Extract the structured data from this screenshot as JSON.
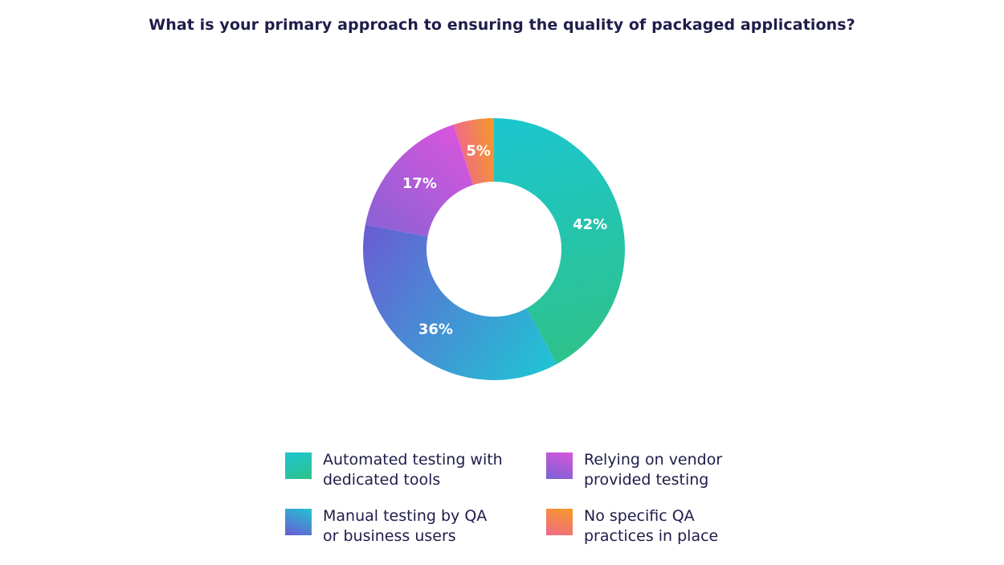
{
  "chart_data": {
    "type": "pie",
    "title": "What is your primary approach to ensuring the quality of packaged applications?",
    "series": [
      {
        "name": "Automated testing with dedicated tools",
        "value": 42,
        "label": "42%",
        "colors": [
          "#1bc6d0",
          "#2ec28a"
        ]
      },
      {
        "name": "Manual testing by QA or business users",
        "value": 36,
        "label": "36%",
        "colors": [
          "#20c4d4",
          "#6a5cd4"
        ]
      },
      {
        "name": "Relying on vendor provided testing",
        "value": 17,
        "label": "17%",
        "colors": [
          "#8a62d4",
          "#d955dd"
        ]
      },
      {
        "name": "No specific QA practices in place",
        "value": 5,
        "label": "5%",
        "colors": [
          "#f06a8a",
          "#f59a24"
        ]
      }
    ],
    "legend_position": "bottom",
    "hole": "donut"
  },
  "legend": [
    {
      "label": "Automated testing with\ndedicated tools"
    },
    {
      "label": "Relying on vendor\nprovided testing"
    },
    {
      "label": "Manual testing by QA\nor business users"
    },
    {
      "label": "No specific QA\npractices in place"
    }
  ]
}
